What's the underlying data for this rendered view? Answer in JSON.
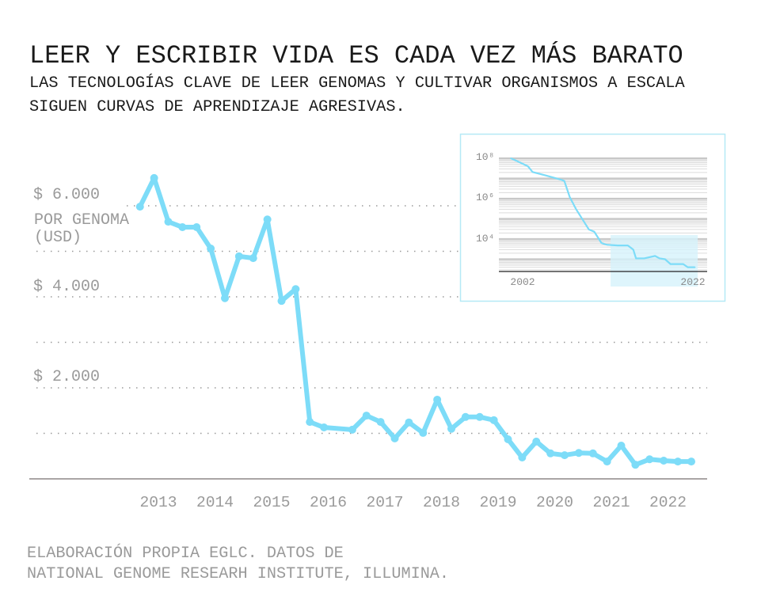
{
  "header": {
    "title": "LEER Y ESCRIBIR VIDA ES CADA VEZ MÁS BARATO",
    "subtitle_lines": [
      "LAS TECNOLOGÍAS CLAVE DE LEER GENOMAS Y CULTIVAR ORGANISMOS A ESCALA",
      "SIGUEN CURVAS DE APRENDIZAJE AGRESIVAS."
    ]
  },
  "footer": {
    "lines": [
      "ELABORACIÓN PROPIA EGLC. DATOS DE",
      "NATIONAL GENOME RESEARH INSTITUTE, ILLUMINA."
    ]
  },
  "colors": {
    "line": "#7ddcf8",
    "text": "#1a1a1a",
    "muted": "#9a9a9a",
    "inset_border": "#b5e9f6",
    "inset_highlight": "#d6f2fb"
  },
  "chart_data": [
    {
      "type": "line",
      "ylabel": "POR GENOMA (USD)",
      "ylabel_lines": [
        "POR GENOMA",
        "(USD)"
      ],
      "ylim": [
        0,
        6000
      ],
      "yticks": [
        0,
        1000,
        2000,
        3000,
        4000,
        5000,
        6000
      ],
      "ytick_labels": [
        {
          "value": 6000,
          "label": "$ 6.000"
        },
        {
          "value": 4000,
          "label": "$ 4.000"
        },
        {
          "value": 2000,
          "label": "$ 2.000"
        }
      ],
      "xtick_labels": [
        "2013",
        "2014",
        "2015",
        "2016",
        "2017",
        "2018",
        "2019",
        "2020",
        "2021",
        "2022"
      ],
      "grid": true,
      "x": [
        "2012-09",
        "2012-12",
        "2013-03",
        "2013-06",
        "2013-09",
        "2013-12",
        "2014-03",
        "2014-06",
        "2014-09",
        "2014-12",
        "2015-03",
        "2015-06",
        "2015-09",
        "2015-12",
        "2016-06",
        "2016-09",
        "2016-12",
        "2017-03",
        "2017-06",
        "2017-09",
        "2017-12",
        "2018-03",
        "2018-06",
        "2018-09",
        "2018-12",
        "2019-03",
        "2019-06",
        "2019-09",
        "2019-12",
        "2020-03",
        "2020-06",
        "2020-09",
        "2020-12",
        "2021-03",
        "2021-06",
        "2021-09",
        "2021-12",
        "2022-03",
        "2022-04"
      ],
      "values": [
        5980,
        6610,
        5650,
        5530,
        5530,
        5060,
        3970,
        4890,
        4850,
        5700,
        3910,
        4170,
        1250,
        1130,
        1080,
        1390,
        1250,
        890,
        1240,
        1010,
        1740,
        1100,
        1360,
        1360,
        1290,
        870,
        470,
        820,
        560,
        520,
        570,
        560,
        380,
        730,
        310,
        430,
        400,
        380,
        380
      ]
    },
    {
      "type": "line",
      "yscale": "log",
      "ylim": [
        250,
        100000000
      ],
      "ytick_labels": [
        {
          "value": 100000000,
          "label": "10⁸"
        },
        {
          "value": 1000000,
          "label": "10⁶"
        },
        {
          "value": 10000,
          "label": "10⁴"
        }
      ],
      "xtick_labels": [
        "2002",
        "2022"
      ],
      "grid": true,
      "highlight_range": [
        2012.7,
        2022.3
      ],
      "x": [
        2001.7,
        2002.3,
        2003.6,
        2004.1,
        2005.6,
        2007.1,
        2007.6,
        2008.2,
        2008.9,
        2010.3,
        2010.9,
        2011.7,
        2012.3,
        2013.5,
        2014.6,
        2015.2,
        2015.5,
        2016.4,
        2017.6,
        2018.1,
        2018.7,
        2019.3,
        2020.7,
        2021.2,
        2022.0
      ],
      "values": [
        100000000,
        76000000,
        40000000,
        21000000,
        14000000,
        9100000,
        7600000,
        1200000,
        300000,
        30000,
        23000,
        6300,
        5200,
        4800,
        4800,
        3000,
        1100,
        1100,
        1450,
        1100,
        1000,
        575,
        575,
        400,
        400
      ]
    }
  ]
}
